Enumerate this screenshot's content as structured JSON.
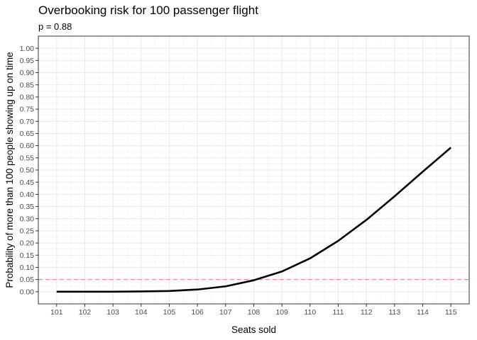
{
  "chart_data": {
    "type": "line",
    "title": "Overbooking risk for 100 passenger flight",
    "subtitle": "p = 0.88",
    "xlabel": "Seats sold",
    "ylabel": "Probability of more than 100 people showing up on time",
    "x": [
      101,
      102,
      103,
      104,
      105,
      106,
      107,
      108,
      109,
      110,
      111,
      112,
      113,
      114,
      115
    ],
    "series": [
      {
        "values": [
          0.0,
          0.0,
          0.0,
          0.001,
          0.003,
          0.009,
          0.022,
          0.047,
          0.083,
          0.137,
          0.209,
          0.295,
          0.392,
          0.493,
          0.592
        ],
        "color": "#000000"
      }
    ],
    "reference_line": {
      "y": 0.05,
      "style": "dashed",
      "color": "#e8928a"
    },
    "x_ticks": [
      "101",
      "102",
      "103",
      "104",
      "105",
      "106",
      "107",
      "108",
      "109",
      "110",
      "111",
      "112",
      "113",
      "114",
      "115"
    ],
    "y_ticks": [
      "0.00",
      "0.05",
      "0.10",
      "0.15",
      "0.20",
      "0.25",
      "0.30",
      "0.35",
      "0.40",
      "0.45",
      "0.50",
      "0.55",
      "0.60",
      "0.65",
      "0.70",
      "0.75",
      "0.80",
      "0.85",
      "0.90",
      "0.95",
      "1.00"
    ],
    "xlim": [
      100.35,
      115.65
    ],
    "ylim": [
      -0.05,
      1.05
    ],
    "grid": true,
    "legend": "none"
  }
}
